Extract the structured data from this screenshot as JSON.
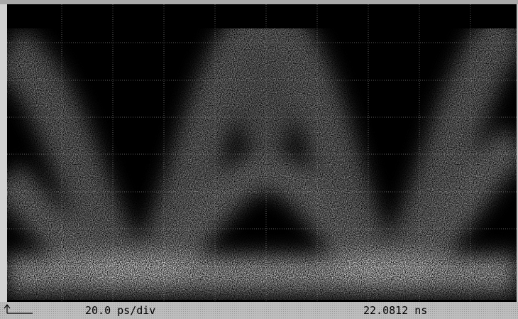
{
  "status_bar": {
    "timebase": "20.0 ps/div",
    "position": "22.0812 ns"
  }
}
